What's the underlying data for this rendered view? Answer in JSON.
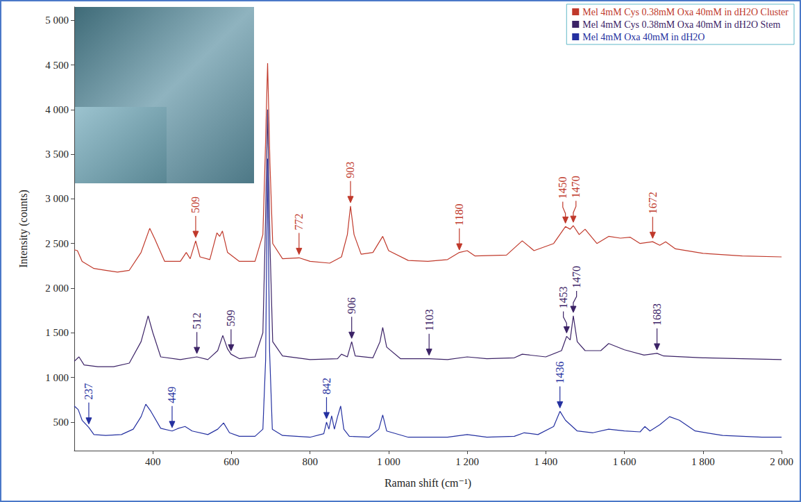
{
  "chart_data": {
    "type": "line",
    "x_label": "Raman shift (cm⁻¹)",
    "y_label": "Intensity (counts)",
    "xlim": [
      200,
      2000
    ],
    "xticks": [
      400,
      600,
      800,
      {
        "value": 1000,
        "label": "1 000"
      },
      {
        "value": 1200,
        "label": "1 200"
      },
      {
        "value": 1400,
        "label": "1 400"
      },
      {
        "value": 1600,
        "label": "1 600"
      },
      {
        "value": 1800,
        "label": "1 800"
      },
      {
        "value": 2000,
        "label": "2 000"
      }
    ],
    "ylim": [
      180,
      5150
    ],
    "yticks": [
      500,
      {
        "value": 1000,
        "label": "1 000"
      },
      {
        "value": 1500,
        "label": "1 500"
      },
      {
        "value": 2000,
        "label": "2 000"
      },
      {
        "value": 2500,
        "label": "2 500"
      },
      {
        "value": 3000,
        "label": "3 000"
      },
      {
        "value": 3500,
        "label": "3 500"
      },
      {
        "value": 4000,
        "label": "4 000"
      },
      {
        "value": 4500,
        "label": "4 500"
      },
      {
        "value": 5000,
        "label": "5 000"
      }
    ],
    "grid": false,
    "legend": "top-right",
    "series": [
      {
        "name": "Mel 4mM Cys 0.38mM Oxa 40mM in dH2O Cluster",
        "color": "#c0392b",
        "x": [
          200,
          208,
          220,
          250,
          280,
          310,
          340,
          370,
          392,
          405,
          430,
          470,
          485,
          495,
          509,
          520,
          545,
          563,
          570,
          577,
          590,
          620,
          660,
          680,
          686,
          692,
          698,
          705,
          730,
          772,
          800,
          850,
          880,
          895,
          903,
          912,
          930,
          960,
          985,
          1000,
          1050,
          1100,
          1150,
          1180,
          1200,
          1220,
          1300,
          1340,
          1370,
          1420,
          1450,
          1462,
          1470,
          1485,
          1500,
          1530,
          1560,
          1590,
          1615,
          1640,
          1672,
          1690,
          1705,
          1730,
          1800,
          1900,
          2000
        ],
        "values": [
          2430,
          2420,
          2300,
          2220,
          2200,
          2180,
          2200,
          2400,
          2670,
          2550,
          2300,
          2300,
          2400,
          2330,
          2530,
          2350,
          2320,
          2620,
          2580,
          2640,
          2400,
          2300,
          2300,
          2600,
          3500,
          4520,
          3400,
          2500,
          2330,
          2340,
          2300,
          2280,
          2350,
          2600,
          2920,
          2600,
          2380,
          2400,
          2580,
          2420,
          2310,
          2300,
          2320,
          2400,
          2420,
          2360,
          2370,
          2530,
          2420,
          2500,
          2690,
          2660,
          2700,
          2600,
          2660,
          2500,
          2580,
          2560,
          2570,
          2500,
          2520,
          2480,
          2520,
          2440,
          2390,
          2360,
          2350
        ],
        "annotations": [
          {
            "x": 509,
            "y": 2560,
            "label": "509"
          },
          {
            "x": 772,
            "y": 2370,
            "label": "772"
          },
          {
            "x": 903,
            "y": 2950,
            "label": "903"
          },
          {
            "x": 1180,
            "y": 2420,
            "label": "1180"
          },
          {
            "x": 1450,
            "y": 2720,
            "label": "1450"
          },
          {
            "x": 1470,
            "y": 2730,
            "label": "1470"
          },
          {
            "x": 1672,
            "y": 2550,
            "label": "1672"
          }
        ]
      },
      {
        "name": "Mel 4mM Cys 0.38mM Oxa 40mM in dH2O Stem",
        "color": "#3b2266",
        "x": [
          200,
          212,
          225,
          260,
          300,
          340,
          370,
          388,
          400,
          420,
          470,
          512,
          540,
          565,
          578,
          590,
          599,
          620,
          660,
          680,
          686,
          692,
          698,
          705,
          730,
          800,
          870,
          880,
          895,
          906,
          915,
          960,
          978,
          985,
          995,
          1030,
          1103,
          1150,
          1200,
          1250,
          1320,
          1340,
          1400,
          1440,
          1453,
          1462,
          1470,
          1480,
          1500,
          1540,
          1560,
          1600,
          1650,
          1683,
          1700,
          1800,
          1900,
          2000
        ],
        "values": [
          1180,
          1230,
          1140,
          1120,
          1120,
          1160,
          1400,
          1690,
          1500,
          1230,
          1200,
          1230,
          1200,
          1300,
          1470,
          1320,
          1260,
          1210,
          1230,
          1500,
          2600,
          4000,
          2500,
          1400,
          1240,
          1200,
          1210,
          1260,
          1230,
          1400,
          1240,
          1220,
          1400,
          1560,
          1340,
          1210,
          1210,
          1200,
          1230,
          1210,
          1220,
          1260,
          1230,
          1300,
          1460,
          1420,
          1690,
          1400,
          1300,
          1300,
          1380,
          1310,
          1250,
          1270,
          1240,
          1220,
          1210,
          1200
        ],
        "annotations": [
          {
            "x": 512,
            "y": 1260,
            "label": "512"
          },
          {
            "x": 599,
            "y": 1290,
            "label": "599"
          },
          {
            "x": 906,
            "y": 1430,
            "label": "906"
          },
          {
            "x": 1103,
            "y": 1240,
            "label": "1103"
          },
          {
            "x": 1453,
            "y": 1490,
            "label": "1453"
          },
          {
            "x": 1470,
            "y": 1720,
            "label": "1470"
          },
          {
            "x": 1683,
            "y": 1300,
            "label": "1683"
          }
        ]
      },
      {
        "name": "Mel 4mM Oxa 40mM in dH2O",
        "color": "#2430a0",
        "x": [
          200,
          210,
          220,
          237,
          250,
          280,
          320,
          350,
          370,
          382,
          395,
          420,
          449,
          465,
          482,
          500,
          540,
          565,
          580,
          595,
          620,
          660,
          680,
          687,
          692,
          697,
          704,
          730,
          800,
          835,
          842,
          848,
          855,
          862,
          870,
          878,
          886,
          900,
          950,
          975,
          985,
          995,
          1050,
          1150,
          1200,
          1250,
          1320,
          1345,
          1380,
          1420,
          1436,
          1450,
          1480,
          1520,
          1560,
          1600,
          1640,
          1652,
          1665,
          1690,
          1715,
          1740,
          1780,
          1850,
          1950,
          2000
        ],
        "values": [
          680,
          640,
          520,
          440,
          360,
          350,
          360,
          420,
          560,
          700,
          620,
          430,
          400,
          430,
          450,
          400,
          360,
          420,
          490,
          380,
          340,
          340,
          420,
          1200,
          3450,
          1300,
          420,
          350,
          330,
          370,
          500,
          420,
          570,
          420,
          560,
          680,
          420,
          340,
          330,
          420,
          580,
          400,
          330,
          330,
          360,
          330,
          340,
          380,
          360,
          450,
          620,
          520,
          400,
          380,
          420,
          400,
          390,
          450,
          400,
          470,
          560,
          520,
          400,
          350,
          330,
          330
        ],
        "annotations": [
          {
            "x": 237,
            "y": 470,
            "label": "237"
          },
          {
            "x": 449,
            "y": 430,
            "label": "449"
          },
          {
            "x": 842,
            "y": 530,
            "label": "842"
          },
          {
            "x": 1436,
            "y": 650,
            "label": "1436"
          }
        ]
      }
    ]
  }
}
